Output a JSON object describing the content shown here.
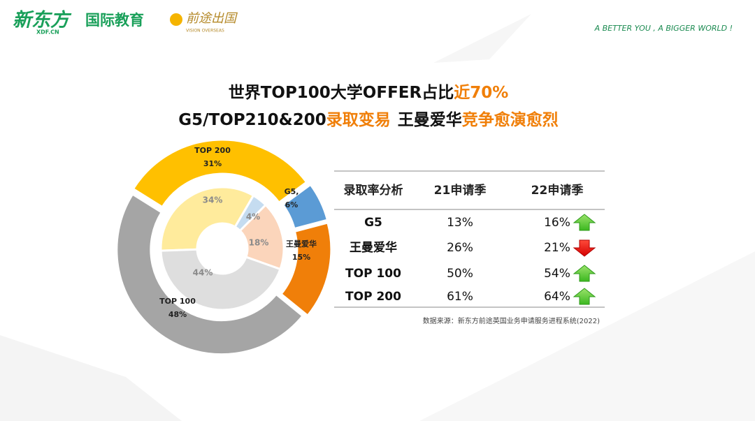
{
  "header": {
    "logo": "新东方",
    "logo_sub": "XDF.CN",
    "brand": "国际教育",
    "partner": "前途出国",
    "partner_sub": "VISION OVERSEAS",
    "slogan": "A BETTER YOU , A BIGGER WORLD !"
  },
  "title": {
    "line1": [
      "世界TOP100大学OFFER占比",
      "近70%"
    ],
    "line2": [
      "G5/TOP210&200",
      "录取变易",
      "王曼爱华",
      "竞争愈演愈烈"
    ]
  },
  "chart_data": {
    "type": "doughnut",
    "categories": [
      "TOP 200",
      "G5,",
      "王曼爱华",
      "TOP 100"
    ],
    "series": [
      {
        "colors": [
          "#ffc000",
          "#5b9bd5",
          "#f07f09",
          "#a5a5a5"
        ],
        "values": [
          31,
          6,
          15,
          48
        ],
        "value_labels": [
          "31%",
          "6%",
          "15%",
          "48%"
        ]
      },
      {
        "colors": [
          "#ffeb9c",
          "#c5dcf0",
          "#fbd5bb",
          "#dedede"
        ],
        "values": [
          34,
          4,
          18,
          44
        ],
        "value_labels": [
          "34%",
          "4%",
          "18%",
          "44%"
        ]
      }
    ]
  },
  "table": {
    "header": [
      "录取率分析",
      "21申请季",
      "22申请季"
    ],
    "rows": [
      [
        "G5",
        "13%",
        "16%"
      ],
      [
        "王曼爱华",
        "26%",
        "21%"
      ],
      [
        "TOP 100",
        "50%",
        "54%"
      ],
      [
        "TOP 200",
        "61%",
        "64%"
      ]
    ]
  },
  "source": "数据来源：新东方前途英国业务申请服务进程系统(2022)"
}
